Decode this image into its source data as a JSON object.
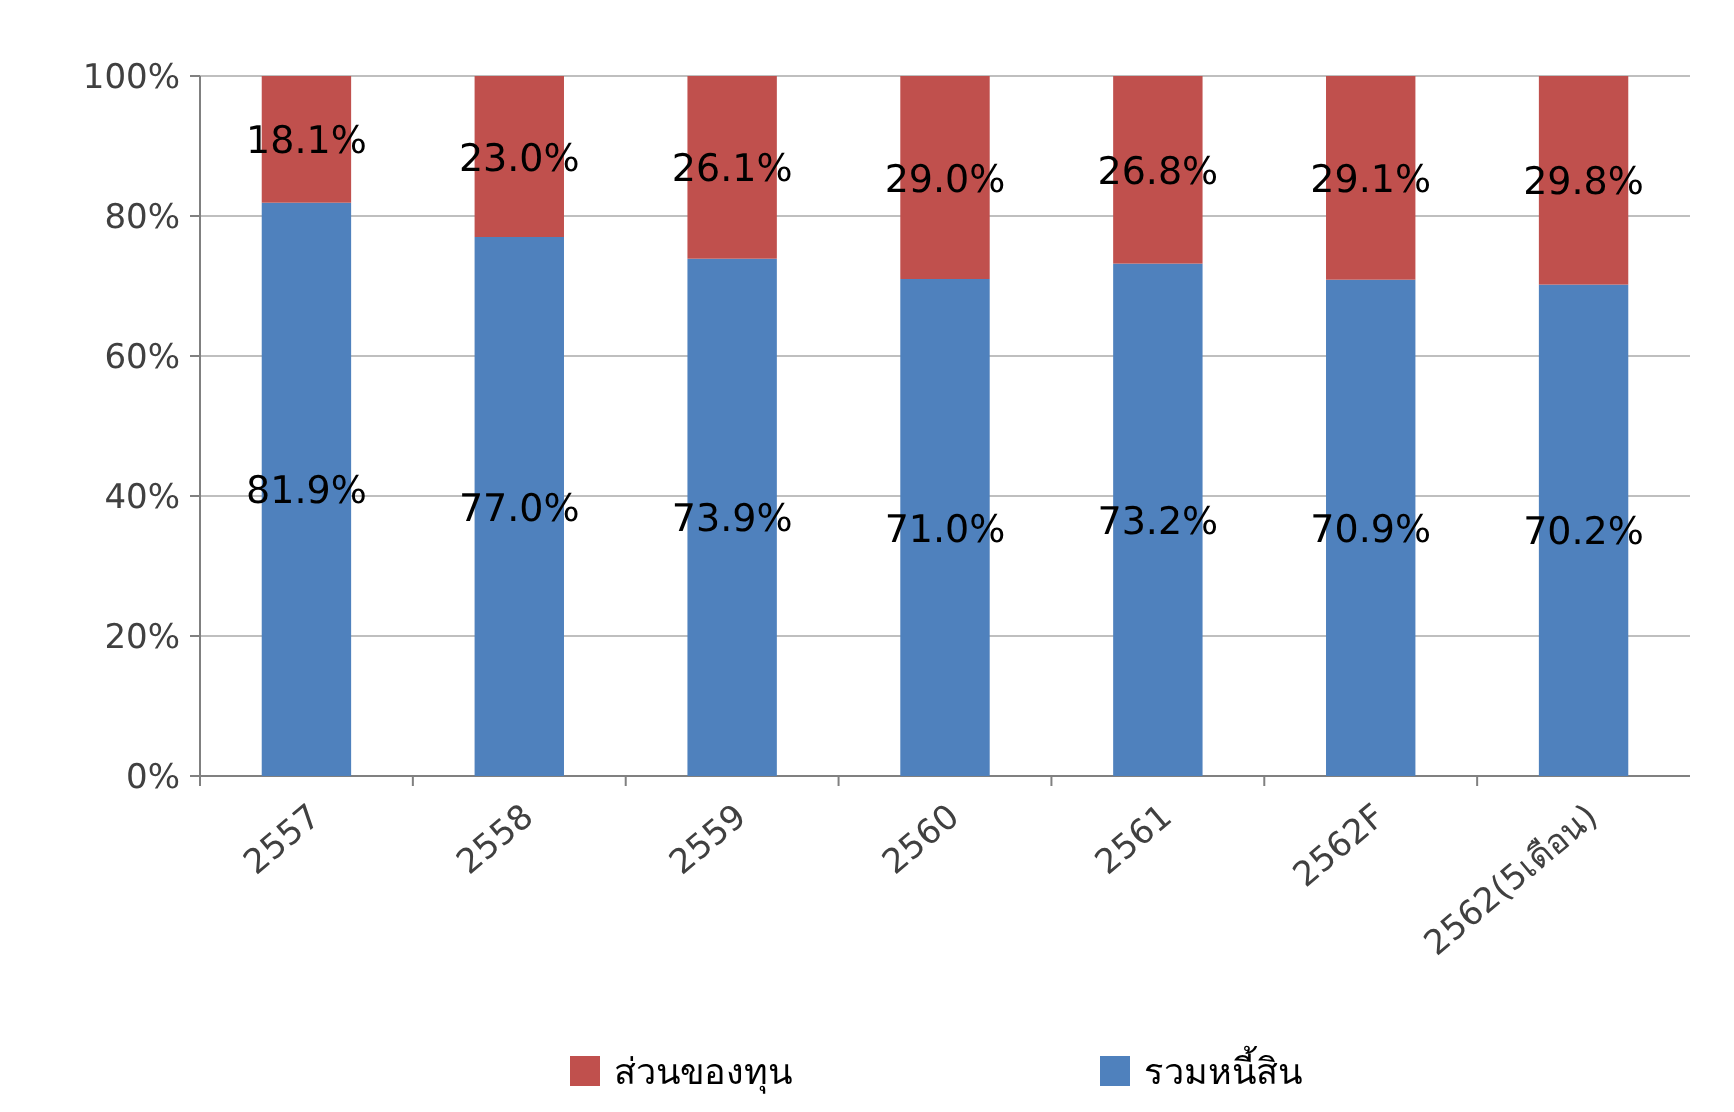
{
  "chart_data": {
    "type": "bar",
    "stacked": true,
    "categories": [
      "2557",
      "2558",
      "2559",
      "2560",
      "2561",
      "2562F",
      "2562(5เดือน)"
    ],
    "series": [
      {
        "name": "รวมหนี้สิน",
        "color": "#4f81bd",
        "values": [
          81.9,
          77.0,
          73.9,
          71.0,
          73.2,
          70.9,
          70.2
        ],
        "value_labels": [
          "81.9%",
          "77.0%",
          "73.9%",
          "71.0%",
          "73.2%",
          "70.9%",
          "70.2%"
        ]
      },
      {
        "name": "ส่วนของทุน",
        "color": "#c0504d",
        "values": [
          18.1,
          23.0,
          26.1,
          29.0,
          26.8,
          29.1,
          29.8
        ],
        "value_labels": [
          "18.1%",
          "23.0%",
          "26.1%",
          "29.0%",
          "26.8%",
          "29.1%",
          "29.8%"
        ]
      }
    ],
    "ylim": [
      0,
      100
    ],
    "yticks": [
      {
        "value": 0,
        "label": "0%"
      },
      {
        "value": 20,
        "label": "20%"
      },
      {
        "value": 40,
        "label": "40%"
      },
      {
        "value": 60,
        "label": "60%"
      },
      {
        "value": 80,
        "label": "80%"
      },
      {
        "value": 100,
        "label": "100%"
      }
    ],
    "grid": "y",
    "legend": "bottom"
  }
}
